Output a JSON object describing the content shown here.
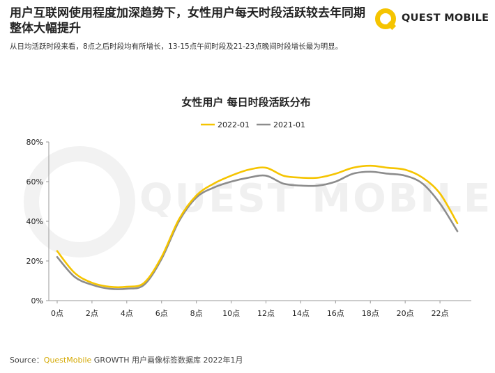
{
  "headline": "用户互联网使用程度加深趋势下，女性用户每天时段活跃较去年同期整体大幅提升",
  "subtitle": "从日均活跃时段来看，8点之后时段均有所增长，13-15点午间时段及21-23点晚间时段增长最为明显。",
  "logo": {
    "text": "QUEST MOBILE",
    "icon": "questmobile-ring-icon",
    "color": "#f5c400"
  },
  "watermark": "QUEST MOBILE",
  "source": {
    "prefix": "Source：",
    "brand": "QuestMobile",
    "rest": " GROWTH 用户画像标签数据库 2022年1月"
  },
  "colors": {
    "series_2022": "#f5c400",
    "series_2021": "#8c8c8c",
    "axis": "#999999"
  },
  "chart_data": {
    "type": "line",
    "title": "女性用户 每日时段活跃分布",
    "xlabel": "",
    "ylabel": "",
    "ylim": [
      0,
      80
    ],
    "yticks": [
      0,
      20,
      40,
      60,
      80
    ],
    "ytick_labels": [
      "0%",
      "20%",
      "40%",
      "60%",
      "80%"
    ],
    "x": [
      0,
      1,
      2,
      3,
      4,
      5,
      6,
      7,
      8,
      9,
      10,
      11,
      12,
      13,
      14,
      15,
      16,
      17,
      18,
      19,
      20,
      21,
      22,
      23
    ],
    "xtick_values": [
      0,
      2,
      4,
      6,
      8,
      10,
      12,
      14,
      16,
      18,
      20,
      22
    ],
    "xtick_labels": [
      "0点",
      "2点",
      "4点",
      "6点",
      "8点",
      "10点",
      "12点",
      "14点",
      "16点",
      "18点",
      "20点",
      "22点"
    ],
    "legend_position": "top-center",
    "series": [
      {
        "name": "2022-01",
        "color": "#f5c400",
        "values": [
          25,
          14,
          9,
          7,
          7,
          9,
          22,
          41,
          53,
          59,
          63,
          66,
          67,
          63,
          62,
          62,
          64,
          67,
          68,
          67,
          66,
          62,
          54,
          39
        ]
      },
      {
        "name": "2021-01",
        "color": "#8c8c8c",
        "values": [
          22,
          12,
          8,
          6,
          6,
          8,
          21,
          40,
          52,
          57,
          60,
          62,
          63,
          59,
          58,
          58,
          60,
          64,
          65,
          64,
          63,
          59,
          49,
          35
        ]
      }
    ]
  }
}
